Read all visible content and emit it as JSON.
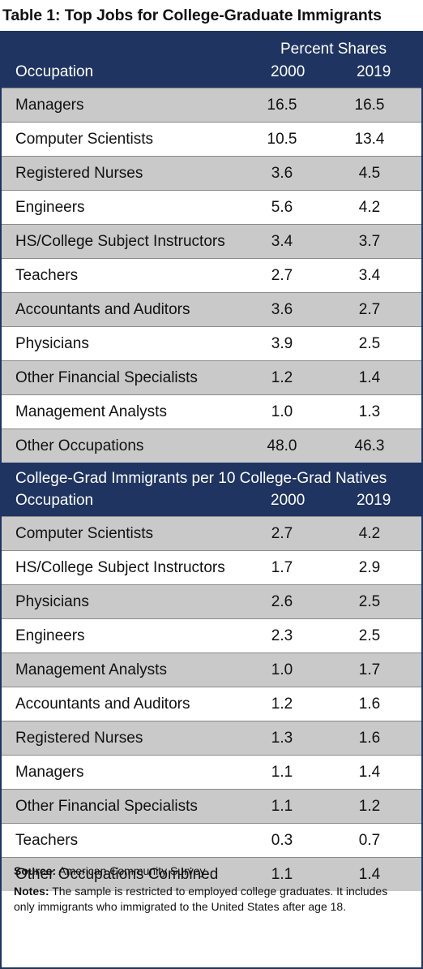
{
  "title": "Table 1: Top Jobs for College-Graduate Immigrants",
  "section1": {
    "group_header": "Percent Shares",
    "col_occupation": "Occupation",
    "col_2000": "2000",
    "col_2019": "2019",
    "rows": [
      {
        "occupation": "Managers",
        "y2000": "16.5",
        "y2019": "16.5"
      },
      {
        "occupation": "Computer Scientists",
        "y2000": "10.5",
        "y2019": "13.4"
      },
      {
        "occupation": "Registered Nurses",
        "y2000": "3.6",
        "y2019": "4.5"
      },
      {
        "occupation": "Engineers",
        "y2000": "5.6",
        "y2019": "4.2"
      },
      {
        "occupation": "HS/College Subject Instructors",
        "y2000": "3.4",
        "y2019": "3.7"
      },
      {
        "occupation": "Teachers",
        "y2000": "2.7",
        "y2019": "3.4"
      },
      {
        "occupation": "Accountants and Auditors",
        "y2000": "3.6",
        "y2019": "2.7"
      },
      {
        "occupation": "Physicians",
        "y2000": "3.9",
        "y2019": "2.5"
      },
      {
        "occupation": "Other Financial Specialists",
        "y2000": "1.2",
        "y2019": "1.4"
      },
      {
        "occupation": "Management Analysts",
        "y2000": "1.0",
        "y2019": "1.3"
      },
      {
        "occupation": "Other Occupations",
        "y2000": "48.0",
        "y2019": "46.3"
      }
    ]
  },
  "section2": {
    "group_header": "College-Grad Immigrants per 10 College-Grad Natives",
    "col_occupation": "Occupation",
    "col_2000": "2000",
    "col_2019": "2019",
    "rows": [
      {
        "occupation": "Computer Scientists",
        "y2000": "2.7",
        "y2019": "4.2"
      },
      {
        "occupation": "HS/College Subject Instructors",
        "y2000": "1.7",
        "y2019": "2.9"
      },
      {
        "occupation": "Physicians",
        "y2000": "2.6",
        "y2019": "2.5"
      },
      {
        "occupation": "Engineers",
        "y2000": "2.3",
        "y2019": "2.5"
      },
      {
        "occupation": "Management Analysts",
        "y2000": "1.0",
        "y2019": "1.7"
      },
      {
        "occupation": "Accountants and Auditors",
        "y2000": "1.2",
        "y2019": "1.6"
      },
      {
        "occupation": "Registered Nurses",
        "y2000": "1.3",
        "y2019": "1.6"
      },
      {
        "occupation": "Managers",
        "y2000": "1.1",
        "y2019": "1.4"
      },
      {
        "occupation": "Other Financial Specialists",
        "y2000": "1.1",
        "y2019": "1.2"
      },
      {
        "occupation": "Teachers",
        "y2000": "0.3",
        "y2019": "0.7"
      },
      {
        "occupation": "Other Occupations Combined",
        "y2000": "1.1",
        "y2019": "1.4"
      }
    ]
  },
  "source_label": "Source:",
  "source_text": "American Community Survey",
  "notes_label": "Notes:",
  "notes_text": "The sample is restricted to employed college graduates. It includes only immigrants who immigrated to the United States after age 18.",
  "colors": {
    "header_bg": "#1f3461",
    "shade": "#c9c9c9"
  }
}
